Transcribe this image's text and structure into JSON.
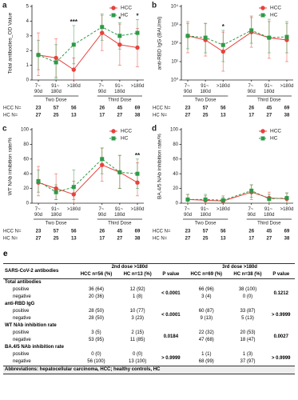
{
  "chart_data": [
    {
      "type": "line",
      "label": "a",
      "y_label": "Total antibodies_OD Value",
      "categories": [
        "7~\n90d",
        "91~\n180d",
        ">180d",
        "7~\n90d",
        "91~\n180d",
        ">180d"
      ],
      "groups": [
        "Two Dose",
        "Third Dose"
      ],
      "ylim": [
        0,
        5
      ],
      "yticks": [
        0,
        1,
        2,
        3,
        4,
        5
      ],
      "series": [
        {
          "name": "HCC",
          "color": "#e8413c",
          "marker": "circle",
          "line_style": "solid",
          "values": [
            1.7,
            1.5,
            0.7,
            3.2,
            2.4,
            2.2
          ],
          "lower": [
            0.3,
            0.2,
            0.0,
            2.0,
            1.0,
            0.9
          ],
          "upper": [
            3.2,
            2.8,
            1.5,
            4.4,
            3.8,
            3.5
          ]
        },
        {
          "name": "HC",
          "color": "#2e9a48",
          "marker": "square",
          "line_style": "dashed",
          "values": [
            1.7,
            1.2,
            2.4,
            3.6,
            3.0,
            3.2
          ],
          "lower": [
            0.7,
            0.1,
            1.1,
            2.7,
            2.1,
            2.3
          ],
          "upper": [
            2.7,
            2.4,
            3.7,
            4.5,
            3.9,
            4.1
          ]
        }
      ],
      "significance": [
        null,
        null,
        "***",
        null,
        "*",
        "*"
      ],
      "n_table": [
        {
          "label": "HCC N=",
          "values": [
            23,
            57,
            56,
            26,
            45,
            69
          ]
        },
        {
          "label": "HC N=",
          "values": [
            27,
            25,
            13,
            17,
            27,
            38
          ]
        }
      ]
    },
    {
      "type": "line",
      "label": "b",
      "y_label": "anti-RBD IgG (BAU/ml)",
      "log_scale": true,
      "categories": [
        "7~\n90d",
        "91~\n180d",
        ">180d",
        "7~\n90d",
        "91~\n180d",
        ">180d"
      ],
      "groups": [
        "Two Dose",
        "Third Dose"
      ],
      "ylim": [
        1,
        10000
      ],
      "yticks": [
        {
          "value": 1,
          "label": "10⁰"
        },
        {
          "value": 10,
          "label": "10¹"
        },
        {
          "value": 100,
          "label": "10²"
        },
        {
          "value": 1000,
          "label": "10³"
        },
        {
          "value": 10000,
          "label": "10⁴"
        }
      ],
      "series": [
        {
          "name": "HCC",
          "color": "#e8413c",
          "marker": "circle",
          "line_style": "solid",
          "values": [
            250,
            150,
            35,
            400,
            200,
            150
          ],
          "lower": [
            30,
            20,
            3,
            60,
            15,
            10
          ],
          "upper": [
            1500,
            1200,
            400,
            3000,
            1500,
            1200
          ]
        },
        {
          "name": "HC",
          "color": "#2e9a48",
          "marker": "square",
          "line_style": "dashed",
          "values": [
            250,
            200,
            80,
            500,
            200,
            220
          ],
          "lower": [
            50,
            30,
            10,
            100,
            30,
            30
          ],
          "upper": [
            1200,
            1200,
            500,
            2500,
            2000,
            1500
          ]
        }
      ],
      "significance": [
        null,
        null,
        "*",
        null,
        null,
        null
      ],
      "n_table": [
        {
          "label": "HCC N=",
          "values": [
            23,
            57,
            56,
            26,
            45,
            69
          ]
        },
        {
          "label": "HC N=",
          "values": [
            27,
            25,
            13,
            17,
            27,
            38
          ]
        }
      ]
    },
    {
      "type": "line",
      "label": "c",
      "y_label": "WT NAb inhibition rate/%",
      "categories": [
        "7~\n90d",
        "91~\n180d",
        ">180d",
        "7~\n90d",
        "91~\n180d",
        ">180d"
      ],
      "groups": [
        "Two Dose",
        "Third Dose"
      ],
      "ylim": [
        0,
        100
      ],
      "yticks": [
        0,
        20,
        40,
        60,
        80,
        100
      ],
      "series": [
        {
          "name": "HCC",
          "color": "#e8413c",
          "marker": "circle",
          "line_style": "solid",
          "values": [
            28,
            20,
            12,
            52,
            42,
            28
          ],
          "lower": [
            10,
            5,
            0,
            30,
            20,
            10
          ],
          "upper": [
            50,
            40,
            30,
            75,
            65,
            55
          ]
        },
        {
          "name": "HC",
          "color": "#2e9a48",
          "marker": "square",
          "line_style": "dashed",
          "values": [
            30,
            15,
            22,
            60,
            42,
            40
          ],
          "lower": [
            15,
            5,
            5,
            40,
            20,
            20
          ],
          "upper": [
            45,
            25,
            45,
            75,
            65,
            60
          ]
        }
      ],
      "significance": [
        null,
        null,
        null,
        null,
        null,
        "**"
      ],
      "n_table": [
        {
          "label": "HCC N=",
          "values": [
            23,
            57,
            56,
            26,
            45,
            69
          ]
        },
        {
          "label": "HC N=",
          "values": [
            27,
            25,
            13,
            17,
            27,
            38
          ]
        }
      ]
    },
    {
      "type": "line",
      "label": "d",
      "y_label": "BA.4/5 NAb inhibition rate/%",
      "categories": [
        "7~\n90d",
        "91~\n180d",
        ">180d",
        "7~\n90d",
        "91~\n180d",
        ">180d"
      ],
      "groups": [
        "Two Dose",
        "Third Dose"
      ],
      "ylim": [
        0,
        100
      ],
      "yticks": [
        0,
        20,
        40,
        60,
        80,
        100
      ],
      "series": [
        {
          "name": "HCC",
          "color": "#e8413c",
          "marker": "circle",
          "line_style": "solid",
          "values": [
            5,
            4,
            3,
            15,
            7,
            6
          ],
          "lower": [
            0,
            0,
            0,
            5,
            0,
            0
          ],
          "upper": [
            12,
            10,
            8,
            25,
            15,
            14
          ]
        },
        {
          "name": "HC",
          "color": "#2e9a48",
          "marker": "square",
          "line_style": "dashed",
          "values": [
            5,
            5,
            4,
            17,
            6,
            7
          ],
          "lower": [
            0,
            0,
            0,
            8,
            0,
            0
          ],
          "upper": [
            12,
            12,
            10,
            25,
            12,
            14
          ]
        }
      ],
      "n_table": [
        {
          "label": "HCC N=",
          "values": [
            23,
            57,
            56,
            26,
            45,
            69
          ]
        },
        {
          "label": "HC N=",
          "values": [
            27,
            25,
            13,
            17,
            27,
            38
          ]
        }
      ]
    }
  ],
  "table": {
    "label": "e",
    "header": {
      "first": "SARS-CoV-2 antibodies",
      "groups": [
        "2nd dose >180d",
        "3rd dose >180d"
      ],
      "columns": [
        "HCC n=56 (%)",
        "HC n=13 (%)",
        "P value",
        "HCC n=69 (%)",
        "HC n=38 (%)",
        "P value"
      ]
    },
    "sections": [
      {
        "name": "Total antibodies",
        "p_values": [
          "< 0.0001",
          "0.1212"
        ],
        "rows": [
          {
            "label": "positive",
            "values": [
              "36 (64)",
              "12 (92)",
              "66 (96)",
              "38 (100)"
            ]
          },
          {
            "label": "negative",
            "values": [
              "20 (36)",
              "1 (8)",
              "3 (4)",
              "0 (0)"
            ]
          }
        ]
      },
      {
        "name": "anti-RBD IgG",
        "p_values": [
          "< 0.0001",
          "> 0.9999"
        ],
        "rows": [
          {
            "label": "positive",
            "values": [
              "28 (50)",
              "10 (77)",
              "60 (87)",
              "33 (87)"
            ]
          },
          {
            "label": "negative",
            "values": [
              "28 (50)",
              "3 (23)",
              "9 (13)",
              "5 (13)"
            ]
          }
        ]
      },
      {
        "name": "WT NAb inhibition rate",
        "p_values": [
          "0.0184",
          "0.0027"
        ],
        "rows": [
          {
            "label": "positive",
            "values": [
              "3 (5)",
              "2 (15)",
              "22 (32)",
              "20 (53)"
            ]
          },
          {
            "label": "negative",
            "values": [
              "53 (95)",
              "11 (85)",
              "47 (68)",
              "18 (47)"
            ]
          }
        ]
      },
      {
        "name": "BA.4/5 NAb inhibition rate",
        "p_values": [
          "> 0.9999",
          "> 0.9999"
        ],
        "rows": [
          {
            "label": "positive",
            "values": [
              "0 (0)",
              "0 (0)",
              "1 (1)",
              "1 (3)"
            ]
          },
          {
            "label": "negative",
            "values": [
              "56 (100)",
              "13 (100)",
              "68 (99)",
              "37 (97)"
            ]
          }
        ]
      }
    ],
    "footer": "Abbreviations: hepatocellular carcinoma, HCC; healthy controls, HC"
  }
}
